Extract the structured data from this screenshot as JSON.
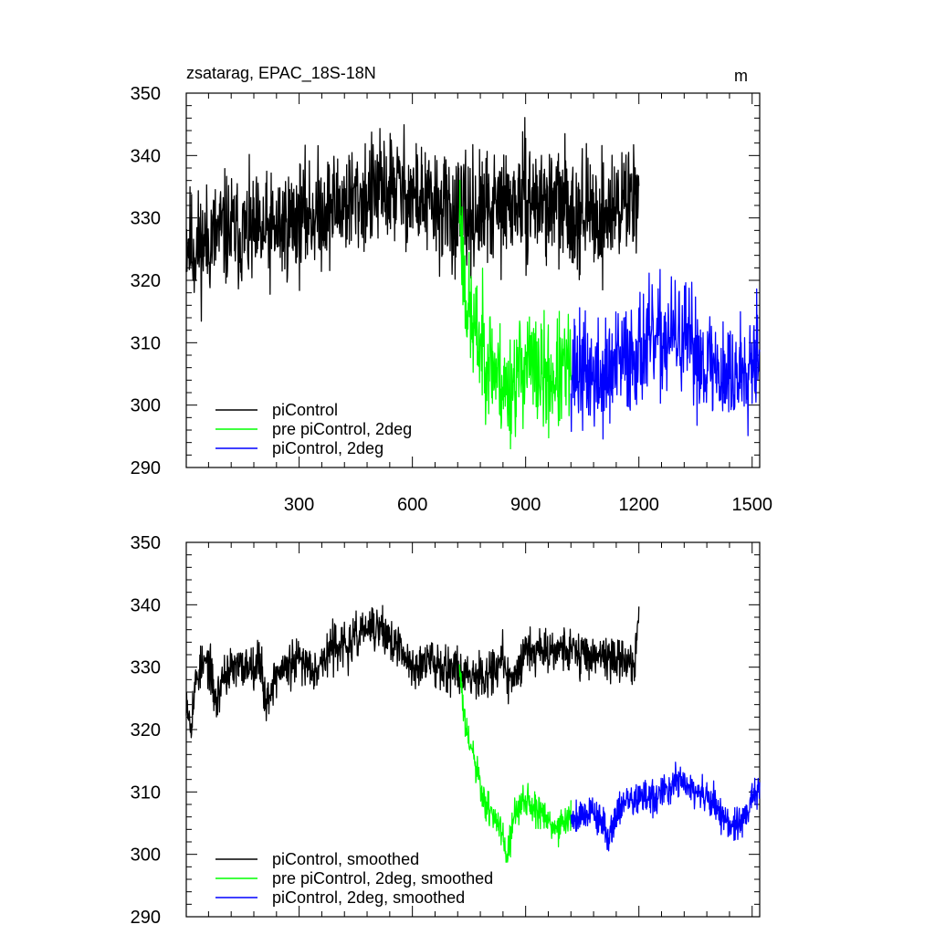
{
  "colors": {
    "black": "#000000",
    "green": "#00ff00",
    "blue": "#0000ff"
  },
  "chart_data": [
    {
      "type": "line",
      "title": "zsatarag, EPAC_18S-18N",
      "units": "m",
      "xlim": [
        1,
        1520
      ],
      "ylim": [
        290,
        350
      ],
      "xticks": [
        300,
        600,
        900,
        1200,
        1500
      ],
      "yticks": [
        290,
        300,
        310,
        320,
        330,
        340,
        350
      ],
      "ytick_labels": [
        "290",
        "300",
        "310",
        "320",
        "330",
        "340",
        "350"
      ],
      "xtick_labels": [
        "300",
        "600",
        "900",
        "1200",
        "1500"
      ],
      "series": [
        {
          "name": "piControl",
          "color": "#000000",
          "x_range": [
            1,
            1200
          ],
          "anchors": [
            [
              1,
              327
            ],
            [
              20,
              325
            ],
            [
              100,
              328
            ],
            [
              200,
              327
            ],
            [
              300,
              330
            ],
            [
              400,
              332
            ],
            [
              500,
              334
            ],
            [
              560,
              335
            ],
            [
              650,
              332
            ],
            [
              725,
              330
            ],
            [
              800,
              331
            ],
            [
              900,
              333
            ],
            [
              1000,
              332
            ],
            [
              1100,
              330
            ],
            [
              1190,
              334
            ],
            [
              1200,
              338
            ]
          ],
          "noise": 4.5,
          "seed": 11
        },
        {
          "name": "pre piControl, 2deg",
          "color": "#00ff00",
          "x_range": [
            725,
            1020
          ],
          "anchors": [
            [
              725,
              332
            ],
            [
              740,
              318
            ],
            [
              760,
              312
            ],
            [
              800,
              308
            ],
            [
              850,
              302
            ],
            [
              900,
              307
            ],
            [
              950,
              304
            ],
            [
              1000,
              305
            ],
            [
              1020,
              306
            ]
          ],
          "noise": 4.5,
          "seed": 23
        },
        {
          "name": "piControl, 2deg",
          "color": "#0000ff",
          "x_range": [
            1020,
            1520
          ],
          "anchors": [
            [
              1020,
              306
            ],
            [
              1100,
              304
            ],
            [
              1200,
              309
            ],
            [
              1300,
              311
            ],
            [
              1400,
              306
            ],
            [
              1450,
              304
            ],
            [
              1520,
              310
            ]
          ],
          "noise": 4.5,
          "seed": 37
        }
      ],
      "legend": [
        "piControl",
        "pre piControl, 2deg",
        "piControl, 2deg"
      ],
      "legend_position": "bottom-left"
    },
    {
      "type": "line",
      "title": "",
      "xlim": [
        1,
        1520
      ],
      "ylim": [
        290,
        350
      ],
      "xticks": [
        300,
        600,
        900,
        1200,
        1500
      ],
      "yticks": [
        290,
        300,
        310,
        320,
        330,
        340,
        350
      ],
      "ytick_labels": [
        "290",
        "300",
        "310",
        "320",
        "330",
        "340",
        "350"
      ],
      "series": [
        {
          "name": "piControl, smoothed",
          "color": "#000000",
          "x_range": [
            1,
            1200
          ],
          "anchors": [
            [
              1,
              326
            ],
            [
              12,
              321
            ],
            [
              30,
              329
            ],
            [
              60,
              331
            ],
            [
              80,
              324
            ],
            [
              100,
              329
            ],
            [
              150,
              330
            ],
            [
              200,
              331
            ],
            [
              210,
              324
            ],
            [
              240,
              329
            ],
            [
              300,
              331
            ],
            [
              350,
              330
            ],
            [
              400,
              334
            ],
            [
              430,
              333
            ],
            [
              470,
              336
            ],
            [
              520,
              336
            ],
            [
              560,
              333
            ],
            [
              600,
              330
            ],
            [
              650,
              331
            ],
            [
              700,
              330
            ],
            [
              740,
              329
            ],
            [
              800,
              329
            ],
            [
              840,
              331
            ],
            [
              860,
              327
            ],
            [
              900,
              333
            ],
            [
              950,
              333
            ],
            [
              1000,
              333
            ],
            [
              1050,
              332
            ],
            [
              1100,
              332
            ],
            [
              1150,
              331
            ],
            [
              1190,
              331
            ],
            [
              1200,
              339
            ]
          ],
          "noise": 1.8,
          "seed": 53
        },
        {
          "name": "pre piControl, 2deg, smoothed",
          "color": "#00ff00",
          "x_range": [
            725,
            1020
          ],
          "anchors": [
            [
              725,
              330
            ],
            [
              740,
              320
            ],
            [
              760,
              316
            ],
            [
              790,
              308
            ],
            [
              820,
              306
            ],
            [
              850,
              300
            ],
            [
              870,
              306
            ],
            [
              900,
              309
            ],
            [
              950,
              306
            ],
            [
              980,
              304
            ],
            [
              1000,
              305
            ],
            [
              1020,
              306
            ]
          ],
          "noise": 1.4,
          "seed": 61
        },
        {
          "name": "piControl, 2deg, smoothed",
          "color": "#0000ff",
          "x_range": [
            1020,
            1520
          ],
          "anchors": [
            [
              1020,
              306
            ],
            [
              1080,
              307
            ],
            [
              1120,
              303
            ],
            [
              1150,
              308
            ],
            [
              1200,
              309
            ],
            [
              1250,
              309
            ],
            [
              1300,
              312
            ],
            [
              1350,
              310
            ],
            [
              1400,
              308
            ],
            [
              1450,
              304
            ],
            [
              1480,
              306
            ],
            [
              1520,
              311
            ]
          ],
          "noise": 1.4,
          "seed": 79
        }
      ],
      "legend": [
        "piControl, smoothed",
        "pre piControl, 2deg, smoothed",
        "piControl, 2deg, smoothed"
      ],
      "legend_position": "bottom-left"
    }
  ]
}
